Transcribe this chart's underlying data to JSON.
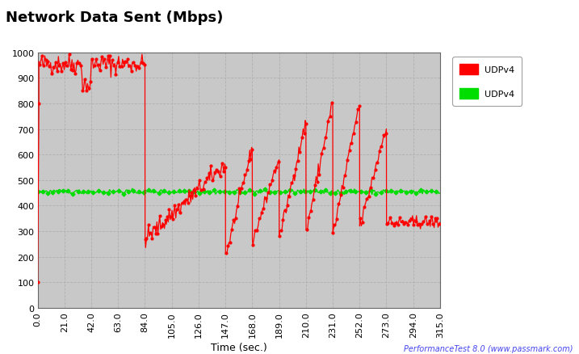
{
  "title": "Network Data Sent (Mbps)",
  "xlabel": "Time (sec.)",
  "x_ticks": [
    0.0,
    21.0,
    42.0,
    63.0,
    84.0,
    105.0,
    126.0,
    147.0,
    168.0,
    189.0,
    210.0,
    231.0,
    252.0,
    273.0,
    294.0,
    315.0
  ],
  "ylim": [
    0,
    1000
  ],
  "xlim": [
    0.0,
    315.0
  ],
  "bg_color": "#c8c8c8",
  "outer_bg": "#ffffff",
  "grid_color": "#b0b0b0",
  "red_color": "#ff0000",
  "green_color": "#00dd00",
  "legend1": "UDPv4",
  "legend2": "UDPv4",
  "watermark": "PerformanceTest 8.0 (www.passmark.com)",
  "title_fontsize": 13,
  "tick_fontsize": 8,
  "xlabel_fontsize": 9,
  "watermark_color": "#4444ee"
}
